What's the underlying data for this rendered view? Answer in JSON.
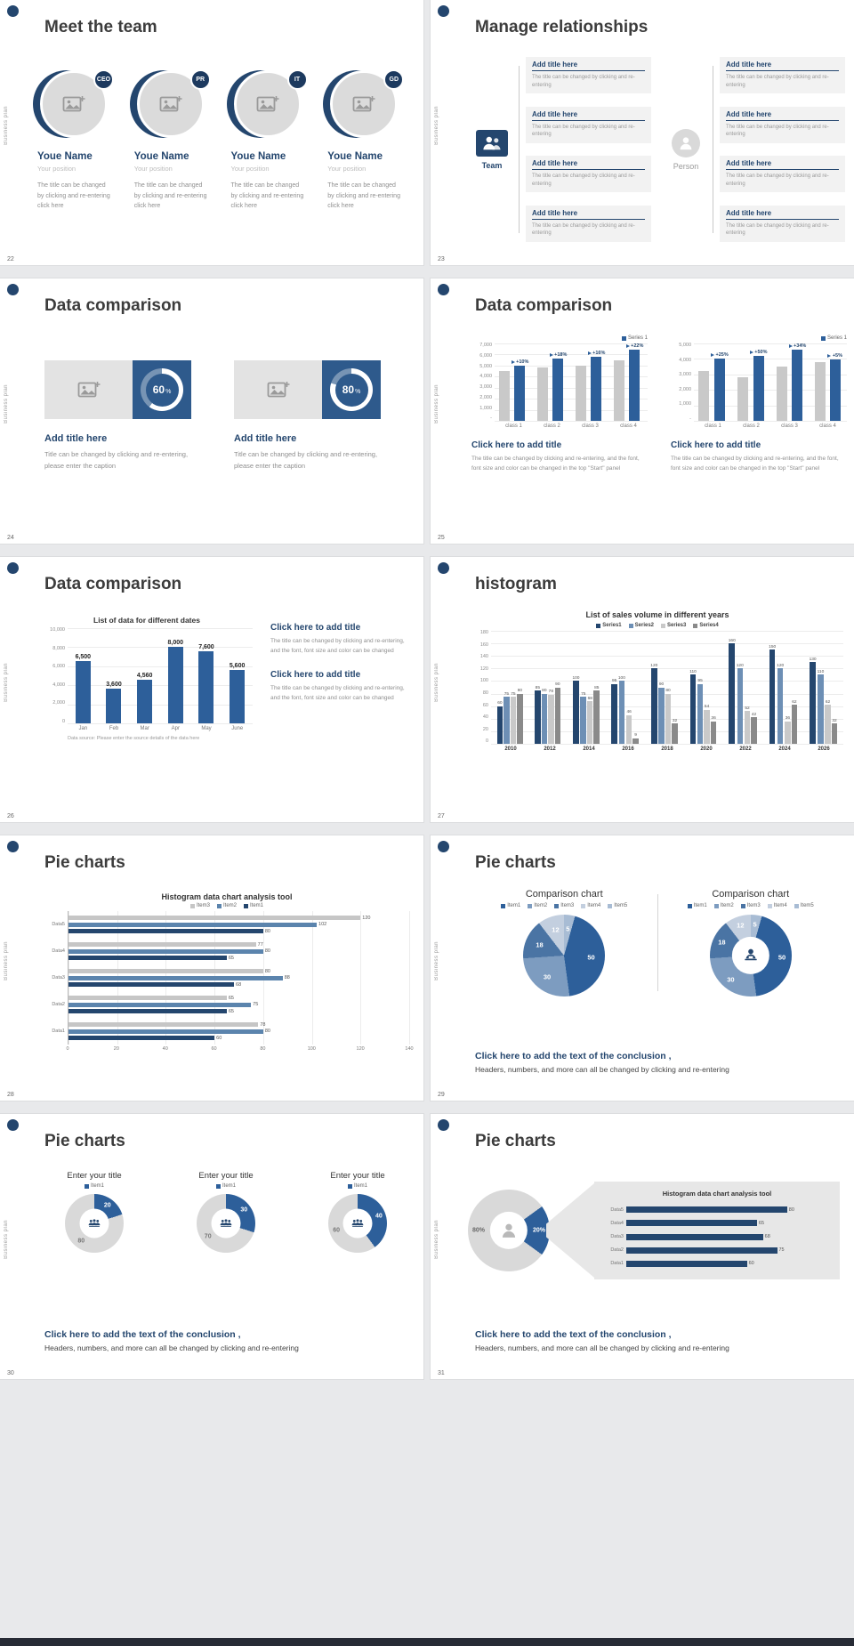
{
  "page": {
    "background": "#e8e9eb",
    "bottom_bar_color": "#272b35",
    "accent_color": "#24466e",
    "bar_blue": "#2d5f9a",
    "bar_gray": "#c9c9c9"
  },
  "chrome": {
    "sidebar_text": "Business plan"
  },
  "slides": {
    "s22": {
      "number": "22",
      "title": "Meet the team",
      "members": [
        {
          "badge": "CEO",
          "name": "Youe Name",
          "position": "Your position",
          "desc": "The title can be changed by clicking and re-entering click here"
        },
        {
          "badge": "PR",
          "name": "Youe Name",
          "position": "Your position",
          "desc": "The title can be changed by clicking and re-entering click here"
        },
        {
          "badge": "IT",
          "name": "Youe Name",
          "position": "Your position",
          "desc": "The title can be changed by clicking and re-entering click here"
        },
        {
          "badge": "GD",
          "name": "Youe Name",
          "position": "Your position",
          "desc": "The title can be changed by clicking and re-entering click here"
        }
      ]
    },
    "s23": {
      "number": "23",
      "title": "Manage relationships",
      "team_label": "Team",
      "person_label": "Person",
      "left_boxes": [
        {
          "title": "Add title here",
          "text": "The title can be changed by clicking and re-entering"
        },
        {
          "title": "Add title here",
          "text": "The title can be changed by clicking and re-entering"
        },
        {
          "title": "Add title here",
          "text": "The title can be changed by clicking and re-entering"
        },
        {
          "title": "Add title here",
          "text": "The title can be changed by clicking and re-entering"
        }
      ],
      "right_boxes": [
        {
          "title": "Add title here",
          "text": "The title can be changed by clicking and re-entering"
        },
        {
          "title": "Add title here",
          "text": "The title can be changed by clicking and re-entering"
        },
        {
          "title": "Add title here",
          "text": "The title can be changed by clicking and re-entering"
        },
        {
          "title": "Add title here",
          "text": "The title can be changed by clicking and re-entering"
        }
      ]
    },
    "s24": {
      "number": "24",
      "title": "Data comparison",
      "cards": [
        {
          "heading": "Add title here",
          "text": "Title can be changed by clic­king and re-entering, please enter the caption"
        },
        {
          "heading": "Add title here",
          "text": "Title can be changed by clicking and re-entering, please enter the caption"
        }
      ]
    },
    "s25": {
      "number": "25",
      "title": "Data comparison",
      "columns": [
        {
          "heading": "Click here to add title",
          "text": "The title can be changed by clicking and re-entering, and the font, font size and color can be changed in the top \"Start\" panel"
        },
        {
          "heading": "Click here to add title",
          "text": "The title can be changed by clicking and re-entering, and the font, font size and color can be changed in the top \"Start\" panel"
        }
      ]
    },
    "s26": {
      "number": "26",
      "title": "Data comparison",
      "source_note": "Data source: Please enter the source details of the data here",
      "blocks": [
        {
          "heading": "Click here to add title",
          "text": "The title can be changed by clicking and re-entering, and the font, font size and color can be changed"
        },
        {
          "heading": "Click here to add title",
          "text": "The title can be changed by clicking and re-entering, and the font, font size and color can be changed"
        }
      ]
    },
    "s27": {
      "number": "27",
      "title": "histogram"
    },
    "s28": {
      "number": "28",
      "title": "Pie charts"
    },
    "s29": {
      "number": "29",
      "title": "Pie charts",
      "panel_titles": [
        "Comparison chart",
        "Comparison chart"
      ],
      "conclusion_heading": "Click here to add the text of the conclusion ,",
      "conclusion_text": "Headers, numbers, and more can all be changed by clicking and re-entering"
    },
    "s30": {
      "number": "30",
      "title": "Pie charts",
      "panels": [
        {
          "title": "Enter your title"
        },
        {
          "title": "Enter your title"
        },
        {
          "title": "Enter your title"
        }
      ],
      "conclusion_heading": "Click here to add the text of the conclusion ,",
      "conclusion_text": "Headers, numbers, and more can all be changed by clicking and re-entering"
    },
    "s31": {
      "number": "31",
      "title": "Pie charts",
      "conclusion_heading": "Click here to add the text of the conclusion ,",
      "conclusion_text": "Headers, numbers, and more can all be changed by clicking and re-entering"
    }
  },
  "chart_data": [
    {
      "id": "s24_gauge_0",
      "type": "gauge",
      "value": 60,
      "unit": "%"
    },
    {
      "id": "s24_gauge_1",
      "type": "gauge",
      "value": 80,
      "unit": "%"
    },
    {
      "id": "s25_left",
      "type": "bar",
      "categories": [
        "class 1",
        "class 2",
        "class 3",
        "class 4"
      ],
      "series": [
        {
          "name": "",
          "color": "#c9c9c9",
          "values": [
            4500,
            4800,
            5000,
            5500
          ]
        },
        {
          "name": "Series 1",
          "color": "#2d5f9a",
          "values": [
            4950,
            5660,
            5800,
            6710
          ],
          "labels": [
            "+10%",
            "+18%",
            "+16%",
            "+22%"
          ],
          "label_flag": true
        }
      ],
      "ylim": [
        0,
        7000
      ],
      "yticks": [
        "7,000",
        "6,000",
        "5,000",
        "4,000",
        "3,000",
        "2,000",
        "1,000",
        "-"
      ],
      "legend": "right",
      "grid": true
    },
    {
      "id": "s25_right",
      "type": "bar",
      "categories": [
        "class 1",
        "class 2",
        "class 3",
        "class 4"
      ],
      "series": [
        {
          "name": "",
          "color": "#c9c9c9",
          "values": [
            3200,
            2800,
            3500,
            3800
          ]
        },
        {
          "name": "Series 1",
          "color": "#2d5f9a",
          "values": [
            4000,
            4200,
            4690,
            3990
          ],
          "labels": [
            "+25%",
            "+50%",
            "+34%",
            "+5%"
          ],
          "label_flag": true
        }
      ],
      "ylim": [
        0,
        5000
      ],
      "yticks": [
        "5,000",
        "4,000",
        "3,000",
        "2,000",
        "1,000",
        "-"
      ],
      "legend": "right",
      "grid": true
    },
    {
      "id": "s26",
      "type": "bar",
      "title": "List of data for different dates",
      "categories": [
        "Jan",
        "Feb",
        "Mar",
        "Apr",
        "May",
        "June"
      ],
      "series": [
        {
          "name": "",
          "color": "#2d5f9a",
          "values": [
            6500,
            3600,
            4560,
            8000,
            7600,
            5600
          ],
          "labels": [
            "6,500",
            "3,600",
            "4,560",
            "8,000",
            "7,600",
            "5,600"
          ]
        }
      ],
      "ylim": [
        0,
        10000
      ],
      "yticks": [
        "10,000",
        "8,000",
        "6,000",
        "4,000",
        "2,000",
        "0"
      ],
      "grid": true
    },
    {
      "id": "s27",
      "type": "bar",
      "title": "List of sales volume in different years",
      "categories": [
        "2010",
        "2012",
        "2014",
        "2016",
        "2018",
        "2020",
        "2022",
        "2024",
        "2026"
      ],
      "series": [
        {
          "name": "Series1",
          "color": "#24466e",
          "values": [
            60,
            85,
            100,
            95,
            120,
            110,
            160,
            150,
            130
          ]
        },
        {
          "name": "Series2",
          "color": "#6d8fb5",
          "values": [
            75,
            80,
            75,
            100,
            90,
            95,
            120,
            120,
            110
          ]
        },
        {
          "name": "Series3",
          "color": "#c9c9c9",
          "values": [
            75,
            78,
            68,
            46,
            80,
            54,
            52,
            36,
            62
          ]
        },
        {
          "name": "Series4",
          "color": "#8a8a8a",
          "values": [
            80,
            90,
            85,
            9,
            32,
            36,
            42,
            62,
            32
          ]
        }
      ],
      "ylim": [
        0,
        180
      ],
      "yticks": [
        "180",
        "160",
        "140",
        "120",
        "100",
        "80",
        "60",
        "40",
        "20",
        "0"
      ],
      "legend": "center",
      "grid": true,
      "auto_labels": true
    },
    {
      "id": "s28",
      "type": "hbar",
      "title": "Histogram data chart analysis tool",
      "categories": [
        "Data5",
        "Data4",
        "Data3",
        "Data2",
        "Data1"
      ],
      "series": [
        {
          "name": "Item3",
          "color": "#c6c6c6",
          "values": [
            120,
            77,
            80,
            65,
            78
          ]
        },
        {
          "name": "Item2",
          "color": "#5b84ad",
          "values": [
            102,
            80,
            88,
            75,
            80
          ]
        },
        {
          "name": "Item1",
          "color": "#24466e",
          "values": [
            80,
            65,
            68,
            65,
            60
          ]
        }
      ],
      "xlim": [
        0,
        140
      ],
      "xticks": [
        "0",
        "20",
        "40",
        "60",
        "80",
        "100",
        "120",
        "140"
      ],
      "legend": "center",
      "auto_labels": true
    },
    {
      "id": "s29_pie",
      "type": "pie",
      "title": "Comparison chart",
      "values": [
        5,
        50,
        30,
        18,
        12
      ],
      "labels": [
        "5",
        "50",
        "30",
        "18",
        "12"
      ],
      "colors": [
        "#a8bcd4",
        "#2d5f9a",
        "#7d9cc0",
        "#4a74a4",
        "#c3cfdf"
      ],
      "label_colors": [
        "#ffffff",
        "#ffffff",
        "#ffffff",
        "#ffffff",
        "#ffffff"
      ],
      "label_r": 0.33,
      "legend": "center",
      "legend_items": [
        {
          "label": "Item1",
          "color": "#2d5f9a"
        },
        {
          "label": "Item2",
          "color": "#7d9cc0"
        },
        {
          "label": "Item3",
          "color": "#4a74a4"
        },
        {
          "label": "Item4",
          "color": "#c3cfdf"
        },
        {
          "label": "Item5",
          "color": "#a8bcd4"
        }
      ]
    },
    {
      "id": "s29_donut",
      "type": "pie",
      "title": "Comparison chart",
      "values": [
        5,
        50,
        30,
        18,
        12
      ],
      "labels": [
        "5",
        "50",
        "30",
        "18",
        "12"
      ],
      "colors": [
        "#a8bcd4",
        "#2d5f9a",
        "#7d9cc0",
        "#4a74a4",
        "#c3cfdf"
      ],
      "label_colors": [
        "#ffffff",
        "#ffffff",
        "#ffffff",
        "#ffffff",
        "#ffffff"
      ],
      "hole": 0.46,
      "label_r": 0.385,
      "center_icon": "person-desk-icon",
      "icon_color": "#24466e",
      "legend": "center",
      "legend_items": [
        {
          "label": "Item1",
          "color": "#2d5f9a"
        },
        {
          "label": "Item2",
          "color": "#7d9cc0"
        },
        {
          "label": "Item3",
          "color": "#4a74a4"
        },
        {
          "label": "Item4",
          "color": "#c3cfdf"
        },
        {
          "label": "Item5",
          "color": "#a8bcd4"
        }
      ]
    },
    {
      "id": "s30_donut_0",
      "type": "pie",
      "title": "Enter your title",
      "values": [
        20,
        80
      ],
      "labels": [
        "20",
        "80"
      ],
      "colors": [
        "#2d5f9a",
        "#d9d9d9"
      ],
      "label_colors": [
        "#ffffff",
        "#777777"
      ],
      "hole": 0.5,
      "label_r": 0.38,
      "center_icon": "people-icon",
      "icon_color": "#24466e",
      "legend": "center",
      "legend_items": [
        {
          "label": "Item1",
          "color": "#2d5f9a"
        }
      ]
    },
    {
      "id": "s30_donut_1",
      "type": "pie",
      "title": "Enter your title",
      "values": [
        30,
        70
      ],
      "labels": [
        "30",
        "70"
      ],
      "colors": [
        "#2d5f9a",
        "#d9d9d9"
      ],
      "label_colors": [
        "#ffffff",
        "#777777"
      ],
      "hole": 0.5,
      "label_r": 0.38,
      "center_icon": "people-icon",
      "icon_color": "#24466e",
      "legend": "center",
      "legend_items": [
        {
          "label": "Item1",
          "color": "#2d5f9a"
        }
      ]
    },
    {
      "id": "s30_donut_2",
      "type": "pie",
      "title": "Enter your title",
      "values": [
        40,
        60
      ],
      "labels": [
        "40",
        "60"
      ],
      "colors": [
        "#2d5f9a",
        "#d9d9d9"
      ],
      "label_colors": [
        "#ffffff",
        "#777777"
      ],
      "hole": 0.5,
      "label_r": 0.38,
      "center_icon": "people-icon",
      "icon_color": "#24466e",
      "legend": "center",
      "legend_items": [
        {
          "label": "Item1",
          "color": "#2d5f9a"
        }
      ]
    },
    {
      "id": "s31_donut",
      "type": "pie",
      "values": [
        20,
        80
      ],
      "labels": [
        "20%",
        "80%"
      ],
      "colors": [
        "#2d5f9a",
        "#d9d9d9"
      ],
      "label_colors": [
        "#ffffff",
        "#666666"
      ],
      "hole": 0.46,
      "label_r": 0.37,
      "start_deg": 54,
      "center_icon": "person-icon",
      "icon_color": "#b9b9b9"
    },
    {
      "id": "s31_hbar",
      "type": "hbar",
      "title": "Histogram data chart analysis tool",
      "categories": [
        "Data5",
        "Data4",
        "Data3",
        "Data2",
        "Data1"
      ],
      "series": [
        {
          "name": "",
          "color": "#24466e",
          "values": [
            80,
            65,
            68,
            75,
            60
          ]
        }
      ],
      "xlim": [
        0,
        100
      ],
      "auto_labels": true
    }
  ]
}
